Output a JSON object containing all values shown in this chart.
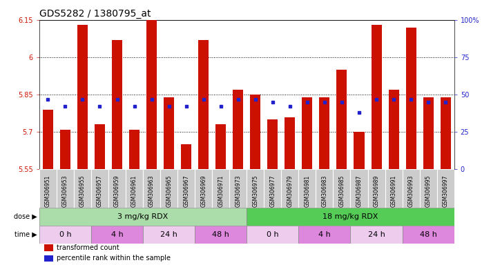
{
  "title": "GDS5282 / 1380795_at",
  "samples": [
    "GSM306951",
    "GSM306953",
    "GSM306955",
    "GSM306957",
    "GSM306959",
    "GSM306961",
    "GSM306963",
    "GSM306965",
    "GSM306967",
    "GSM306969",
    "GSM306971",
    "GSM306973",
    "GSM306975",
    "GSM306977",
    "GSM306979",
    "GSM306981",
    "GSM306983",
    "GSM306985",
    "GSM306987",
    "GSM306989",
    "GSM306991",
    "GSM306993",
    "GSM306995",
    "GSM306997"
  ],
  "bar_values": [
    5.79,
    5.71,
    6.13,
    5.73,
    6.07,
    5.71,
    6.2,
    5.84,
    5.65,
    6.07,
    5.73,
    5.87,
    5.85,
    5.75,
    5.76,
    5.84,
    5.84,
    5.95,
    5.7,
    6.13,
    5.87,
    6.12,
    5.84,
    5.84
  ],
  "percentile_values": [
    47,
    42,
    47,
    42,
    47,
    42,
    47,
    42,
    42,
    47,
    42,
    47,
    47,
    45,
    42,
    45,
    45,
    45,
    38,
    47,
    47,
    47,
    45,
    45
  ],
  "ylim_left": [
    5.55,
    6.15
  ],
  "ylim_right": [
    0,
    100
  ],
  "yticks_left": [
    5.55,
    5.7,
    5.85,
    6.0,
    6.15
  ],
  "yticks_right": [
    0,
    25,
    50,
    75,
    100
  ],
  "ytick_labels_left": [
    "5.55",
    "5.7",
    "5.85",
    "6",
    "6.15"
  ],
  "ytick_labels_right": [
    "0",
    "25",
    "50",
    "75",
    "100%"
  ],
  "hlines": [
    5.7,
    5.85,
    6.0
  ],
  "bar_color": "#cc1100",
  "blue_color": "#2222cc",
  "bar_bottom": 5.55,
  "dose_groups": [
    {
      "label": "3 mg/kg RDX",
      "start": 0,
      "end": 12,
      "color": "#aaddaa"
    },
    {
      "label": "18 mg/kg RDX",
      "start": 12,
      "end": 24,
      "color": "#55cc55"
    }
  ],
  "time_groups": [
    {
      "label": "0 h",
      "start": 0,
      "end": 3,
      "color": "#eeccee"
    },
    {
      "label": "4 h",
      "start": 3,
      "end": 6,
      "color": "#dd88dd"
    },
    {
      "label": "24 h",
      "start": 6,
      "end": 9,
      "color": "#eeccee"
    },
    {
      "label": "48 h",
      "start": 9,
      "end": 12,
      "color": "#dd88dd"
    },
    {
      "label": "0 h",
      "start": 12,
      "end": 15,
      "color": "#eeccee"
    },
    {
      "label": "4 h",
      "start": 15,
      "end": 18,
      "color": "#dd88dd"
    },
    {
      "label": "24 h",
      "start": 18,
      "end": 21,
      "color": "#eeccee"
    },
    {
      "label": "48 h",
      "start": 21,
      "end": 24,
      "color": "#dd88dd"
    }
  ],
  "legend_items": [
    {
      "label": "transformed count",
      "color": "#cc1100"
    },
    {
      "label": "percentile rank within the sample",
      "color": "#2222cc"
    }
  ],
  "sample_bg": "#cccccc",
  "title_fontsize": 10,
  "tick_fontsize": 7,
  "sample_fontsize": 5.5,
  "label_fontsize": 8
}
